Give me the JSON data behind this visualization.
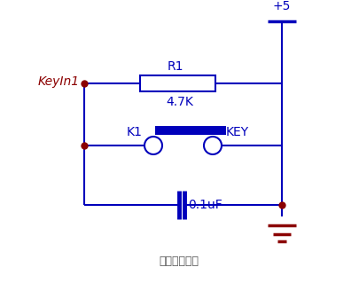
{
  "bg_color": "#ffffff",
  "line_color": "#0000bb",
  "dot_color": "#8B0000",
  "label_color_red": "#8B0000",
  "label_color_blue": "#0000bb",
  "ground_color": "#8B0000",
  "title": "硬件电容消抖",
  "title_fontsize": 9,
  "vcc_label": "+5",
  "keyin_label": "KeyIn1",
  "r1_label": "R1",
  "r1_val": "4.7K",
  "k1_label": "K1",
  "key_label": "KEY",
  "cap_val": "0.1uF",
  "figsize": [
    4.05,
    3.19
  ],
  "dpi": 100
}
